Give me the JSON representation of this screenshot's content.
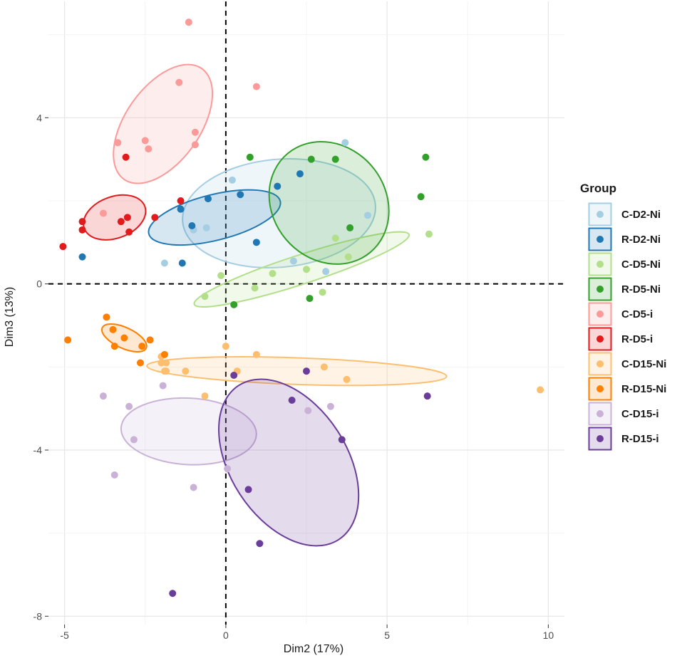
{
  "chart_data": {
    "type": "scatter",
    "xlabel": "Dim2 (17%)",
    "ylabel": "Dim3 (13%)",
    "xlim": [
      -5.5,
      10.5
    ],
    "ylim": [
      -8.2,
      6.8
    ],
    "xticks": [
      -5,
      0,
      5,
      10
    ],
    "yticks": [
      -8,
      -4,
      0,
      4
    ],
    "xtick_labels": [
      "-5",
      "0",
      "5",
      "10"
    ],
    "ytick_labels": [
      "-8",
      "-4",
      "0",
      "4"
    ],
    "grid": true,
    "reference_lines": {
      "x": 0,
      "y": 0,
      "style": "dashed"
    },
    "legend": {
      "title": "Group",
      "position": "right"
    },
    "series": [
      {
        "name": "C-D2-Ni",
        "color": "#a6cee3",
        "points": [
          [
            0.2,
            2.5
          ],
          [
            -1,
            1.3
          ],
          [
            -0.6,
            1.35
          ],
          [
            -1.9,
            0.5
          ],
          [
            2.1,
            0.55
          ],
          [
            3.1,
            0.3
          ],
          [
            3.7,
            3.4
          ],
          [
            4.4,
            1.65
          ]
        ],
        "ellipse": {
          "cx": 1.65,
          "cy": 1.7,
          "rx": 3.0,
          "ry": 1.3,
          "angle": 5
        }
      },
      {
        "name": "R-D2-Ni",
        "color": "#1f78b4",
        "points": [
          [
            -0.55,
            2.05
          ],
          [
            0.45,
            2.15
          ],
          [
            -1.4,
            1.8
          ],
          [
            -1.05,
            1.4
          ],
          [
            -1.35,
            0.5
          ],
          [
            1.6,
            2.35
          ],
          [
            2.3,
            2.65
          ],
          [
            0.95,
            1.0
          ],
          [
            -4.45,
            0.65
          ]
        ],
        "ellipse": {
          "cx": -0.35,
          "cy": 1.6,
          "rx": 2.1,
          "ry": 0.55,
          "angle": 14
        }
      },
      {
        "name": "C-D5-Ni",
        "color": "#b2df8a",
        "points": [
          [
            -0.15,
            0.2
          ],
          [
            -0.65,
            -0.3
          ],
          [
            0.9,
            -0.1
          ],
          [
            1.45,
            0.25
          ],
          [
            2.5,
            0.35
          ],
          [
            3.4,
            1.1
          ],
          [
            3.8,
            0.65
          ],
          [
            3.0,
            -0.2
          ],
          [
            6.3,
            1.2
          ]
        ],
        "ellipse": {
          "cx": 2.35,
          "cy": 0.35,
          "rx": 3.5,
          "ry": 0.35,
          "angle": 18
        }
      },
      {
        "name": "R-D5-Ni",
        "color": "#33a02c",
        "points": [
          [
            0.75,
            3.05
          ],
          [
            2.65,
            3.0
          ],
          [
            3.4,
            3.0
          ],
          [
            6.2,
            3.05
          ],
          [
            6.05,
            2.1
          ],
          [
            3.85,
            1.35
          ],
          [
            0.25,
            -0.5
          ],
          [
            2.6,
            -0.35
          ]
        ],
        "ellipse": {
          "cx": 3.2,
          "cy": 1.95,
          "rx": 1.75,
          "ry": 1.55,
          "angle": 40
        }
      },
      {
        "name": "C-D5-i",
        "color": "#fb9a99",
        "points": [
          [
            -1.15,
            6.3
          ],
          [
            -1.45,
            4.85
          ],
          [
            0.95,
            4.75
          ],
          [
            -0.95,
            3.65
          ],
          [
            -0.95,
            3.35
          ],
          [
            -2.5,
            3.45
          ],
          [
            -2.4,
            3.25
          ],
          [
            -3.35,
            3.4
          ],
          [
            -3.8,
            1.7
          ]
        ],
        "ellipse": {
          "cx": -1.95,
          "cy": 3.85,
          "rx": 2.1,
          "ry": 0.9,
          "angle": 55
        }
      },
      {
        "name": "R-D5-i",
        "color": "#e31a1c",
        "points": [
          [
            -3.1,
            3.05
          ],
          [
            -1.4,
            2.0
          ],
          [
            -2.2,
            1.6
          ],
          [
            -3.05,
            1.6
          ],
          [
            -3.25,
            1.5
          ],
          [
            -3.0,
            1.25
          ],
          [
            -4.45,
            1.5
          ],
          [
            -4.45,
            1.3
          ],
          [
            -5.05,
            0.9
          ]
        ],
        "ellipse": {
          "cx": -3.45,
          "cy": 1.6,
          "rx": 1.0,
          "ry": 0.5,
          "angle": 20
        }
      },
      {
        "name": "C-D15-Ni",
        "color": "#fdbf6f",
        "points": [
          [
            0,
            -1.5
          ],
          [
            0.95,
            -1.7
          ],
          [
            -2,
            -1.75
          ],
          [
            -2,
            -1.9
          ],
          [
            -1.85,
            -1.9
          ],
          [
            -1.85,
            -2.1
          ],
          [
            -1.9,
            -2.1
          ],
          [
            -1.25,
            -2.1
          ],
          [
            0.35,
            -2.1
          ],
          [
            3.05,
            -2.0
          ],
          [
            3.75,
            -2.3
          ],
          [
            -0.65,
            -2.7
          ],
          [
            9.75,
            -2.55
          ]
        ],
        "ellipse": {
          "cx": 2.2,
          "cy": -2.1,
          "rx": 4.65,
          "ry": 0.32,
          "angle": -2
        }
      },
      {
        "name": "R-D15-Ni",
        "color": "#ff7f00",
        "points": [
          [
            -3.7,
            -0.8
          ],
          [
            -3.5,
            -1.1
          ],
          [
            -3.15,
            -1.3
          ],
          [
            -2.35,
            -1.35
          ],
          [
            -2.6,
            -1.5
          ],
          [
            -3.45,
            -1.5
          ],
          [
            -1.9,
            -1.7
          ],
          [
            -2.65,
            -1.9
          ],
          [
            -4.9,
            -1.35
          ]
        ],
        "ellipse": {
          "cx": -3.15,
          "cy": -1.3,
          "rx": 0.75,
          "ry": 0.25,
          "angle": -25
        }
      },
      {
        "name": "C-D15-i",
        "color": "#cab2d6",
        "points": [
          [
            -3.8,
            -2.7
          ],
          [
            -1.95,
            -2.45
          ],
          [
            -3.0,
            -2.95
          ],
          [
            -2.85,
            -3.75
          ],
          [
            2.55,
            -3.05
          ],
          [
            3.25,
            -2.95
          ],
          [
            0.05,
            -4.45
          ],
          [
            -3.45,
            -4.6
          ],
          [
            -1.0,
            -4.9
          ]
        ],
        "ellipse": {
          "cx": -1.15,
          "cy": -3.55,
          "rx": 2.1,
          "ry": 0.8,
          "angle": -3
        }
      },
      {
        "name": "R-D15-i",
        "color": "#6a3d9a",
        "points": [
          [
            0.25,
            -2.2
          ],
          [
            2.5,
            -2.1
          ],
          [
            6.25,
            -2.7
          ],
          [
            2.05,
            -2.8
          ],
          [
            3.6,
            -3.75
          ],
          [
            0.7,
            -4.95
          ],
          [
            1.05,
            -6.25
          ],
          [
            -1.65,
            -7.45
          ]
        ],
        "ellipse": {
          "cx": 1.95,
          "cy": -4.3,
          "rx": 2.85,
          "ry": 1.4,
          "angle": -57
        }
      }
    ]
  }
}
